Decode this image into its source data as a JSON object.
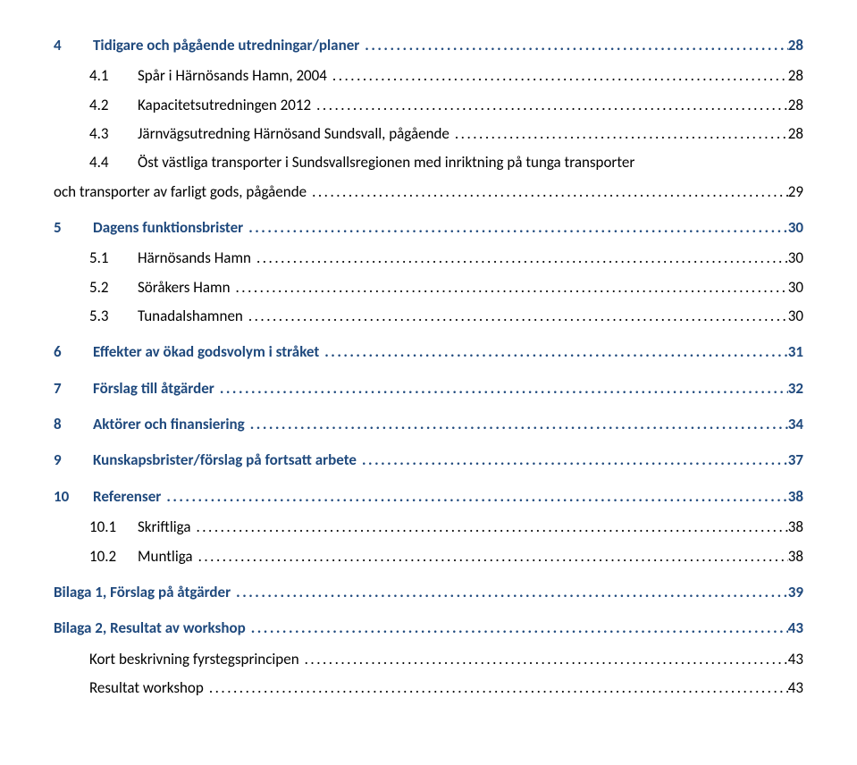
{
  "colors": {
    "heading_color": "#1f497d",
    "body_color": "#000000",
    "background": "#ffffff"
  },
  "typography": {
    "font_family": "Calibri",
    "base_fontsize_pt": 12,
    "heading_weight": 700,
    "body_weight": 400
  },
  "toc": [
    {
      "level": 1,
      "num": "4",
      "title": "Tidigare och pågående utredningar/planer",
      "page": "28"
    },
    {
      "level": 2,
      "num": "4.1",
      "title": "Spår i Härnösands Hamn, 2004",
      "page": "28"
    },
    {
      "level": 2,
      "num": "4.2",
      "title": "Kapacitetsutredningen 2012",
      "page": "28"
    },
    {
      "level": 2,
      "num": "4.3",
      "title": "Järnvägsutredning Härnösand Sundsvall, pågående",
      "page": "28"
    },
    {
      "level": 2,
      "num": "4.4",
      "title": "Öst västliga transporter i Sundsvallsregionen med inriktning på tunga transporter och transporter av farligt gods, pågående",
      "page": "29",
      "wrap": true
    },
    {
      "level": 1,
      "num": "5",
      "title": "Dagens funktionsbrister",
      "page": "30"
    },
    {
      "level": 2,
      "num": "5.1",
      "title": "Härnösands Hamn",
      "page": "30"
    },
    {
      "level": 2,
      "num": "5.2",
      "title": "Söråkers Hamn",
      "page": "30"
    },
    {
      "level": 2,
      "num": "5.3",
      "title": "Tunadalshamnen",
      "page": "30"
    },
    {
      "level": 1,
      "num": "6",
      "title": "Effekter av ökad godsvolym i stråket",
      "page": "31"
    },
    {
      "level": 1,
      "num": "7",
      "title": "Förslag till åtgärder",
      "page": "32"
    },
    {
      "level": 1,
      "num": "8",
      "title": "Aktörer och finansiering",
      "page": "34"
    },
    {
      "level": 1,
      "num": "9",
      "title": "Kunskapsbrister/förslag på fortsatt arbete",
      "page": "37"
    },
    {
      "level": 1,
      "num": "10",
      "title": "Referenser",
      "page": "38"
    },
    {
      "level": 2,
      "num": "10.1",
      "title": "Skriftliga",
      "page": "38"
    },
    {
      "level": 2,
      "num": "10.2",
      "title": "Muntliga",
      "page": "38"
    },
    {
      "level": 1,
      "num": "",
      "title": "Bilaga 1, Förslag på åtgärder",
      "page": "39",
      "nonum": true
    },
    {
      "level": 1,
      "num": "",
      "title": "Bilaga 2, Resultat av workshop",
      "page": "43",
      "nonum": true
    },
    {
      "level": 2,
      "num": "",
      "title": "Kort beskrivning fyrstegsprincipen",
      "page": "43",
      "nonum": true
    },
    {
      "level": 2,
      "num": "",
      "title": "Resultat workshop",
      "page": "43",
      "nonum": true
    }
  ]
}
